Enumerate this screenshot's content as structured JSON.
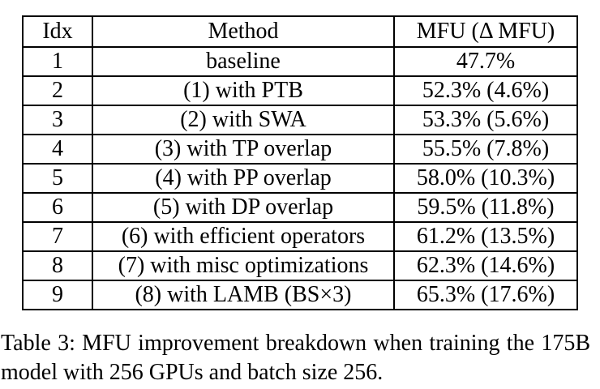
{
  "table": {
    "columns": [
      "Idx",
      "Method",
      "MFU (Δ MFU)"
    ],
    "rows": [
      [
        "1",
        "baseline",
        "47.7%"
      ],
      [
        "2",
        "(1) with PTB",
        "52.3% (4.6%)"
      ],
      [
        "3",
        "(2) with SWA",
        "53.3% (5.6%)"
      ],
      [
        "4",
        "(3) with TP overlap",
        "55.5% (7.8%)"
      ],
      [
        "5",
        "(4) with PP overlap",
        "58.0% (10.3%)"
      ],
      [
        "6",
        "(5) with DP overlap",
        "59.5% (11.8%)"
      ],
      [
        "7",
        "(6) with efficient operators",
        "61.2% (13.5%)"
      ],
      [
        "8",
        "(7) with misc optimizations",
        "62.3% (14.6%)"
      ],
      [
        "9",
        "(8) with LAMB (BS×3)",
        "65.3% (17.6%)"
      ]
    ]
  },
  "caption": {
    "line1": "Table 3: MFU improvement breakdown when training the 175B",
    "line2": "model with 256 GPUs and batch size 256."
  },
  "colors": {
    "background": "#ffffff",
    "text": "#000000",
    "border": "#000000"
  }
}
